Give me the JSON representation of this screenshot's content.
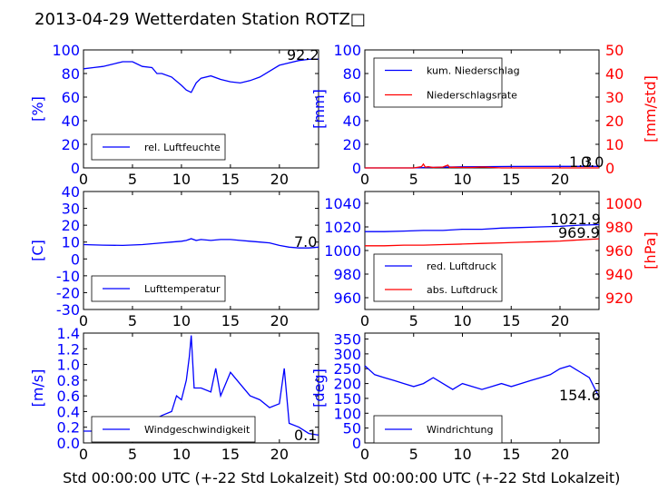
{
  "page": {
    "title": "2013-04-29 Wetterdaten Station ROTZ□"
  },
  "colors": {
    "blue": "#0000ff",
    "red": "#ff0000",
    "black": "#000000"
  },
  "chart_data": [
    {
      "type": "line",
      "ylabel": "[%]",
      "xlim": [
        0,
        24
      ],
      "ylim": [
        0,
        100
      ],
      "xticks": [
        0,
        5,
        10,
        15,
        20
      ],
      "yticks": [
        0,
        20,
        40,
        60,
        80,
        100
      ],
      "legend": "lower-left",
      "annotation": "92.2",
      "series": [
        {
          "name": "rel. Luftfeuchte",
          "color": "#0000ff",
          "x": [
            0,
            1,
            2,
            3,
            4,
            5,
            6,
            7,
            7.5,
            8,
            9,
            10,
            10.5,
            11,
            11.5,
            12,
            13,
            14,
            15,
            16,
            17,
            18,
            19,
            20,
            21,
            22,
            23,
            24
          ],
          "y": [
            84,
            85,
            86,
            88,
            90,
            90,
            86,
            85,
            80,
            80,
            77,
            70,
            66,
            64,
            72,
            76,
            78,
            75,
            73,
            72,
            74,
            77,
            82,
            87,
            89,
            91,
            92,
            92.2
          ]
        }
      ]
    },
    {
      "type": "line",
      "ylabel": "[mm]",
      "ylabel_right": "[mm/std]",
      "xlim": [
        0,
        24
      ],
      "ylim": [
        0,
        100
      ],
      "ylim_right": [
        0,
        50
      ],
      "xticks": [
        0,
        5,
        10,
        15,
        20
      ],
      "yticks": [
        0,
        20,
        40,
        60,
        80,
        100
      ],
      "yticks_right": [
        0,
        10,
        20,
        30,
        40,
        50
      ],
      "legend": "top-left",
      "annotation": "1.3",
      "annotation_2": "0.0",
      "series": [
        {
          "name": "kum. Niederschlag",
          "color": "#0000ff",
          "axis": "left",
          "x": [
            0,
            5,
            6,
            8,
            10,
            12,
            15,
            20,
            24
          ],
          "y": [
            0,
            0,
            0.3,
            0.6,
            0.9,
            1.1,
            1.2,
            1.3,
            1.3
          ]
        },
        {
          "name": "Niederschlagsrate",
          "color": "#ff0000",
          "axis": "right",
          "x": [
            0,
            5,
            5.8,
            6.0,
            6.2,
            6.5,
            7,
            8,
            8.5,
            8.7,
            9,
            10,
            11,
            12,
            12.5,
            13,
            14,
            24
          ],
          "y": [
            0,
            0,
            0.5,
            1.6,
            0.3,
            0.5,
            0.2,
            0.4,
            1.2,
            0.2,
            0.3,
            0.2,
            0.2,
            0.4,
            0.3,
            0.2,
            0,
            0
          ]
        }
      ]
    },
    {
      "type": "line",
      "ylabel": "[C]",
      "xlim": [
        0,
        24
      ],
      "ylim": [
        -30,
        40
      ],
      "xticks": [
        0,
        5,
        10,
        15,
        20
      ],
      "yticks": [
        -30,
        -20,
        -10,
        0,
        10,
        20,
        30,
        40
      ],
      "legend": "lower-left",
      "annotation": "7.0",
      "series": [
        {
          "name": "Lufttemperatur",
          "color": "#0000ff",
          "x": [
            0,
            2,
            4,
            6,
            8,
            9,
            10,
            10.5,
            11,
            11.5,
            12,
            13,
            14,
            15,
            16,
            17,
            18,
            19,
            20,
            21,
            22,
            23,
            24
          ],
          "y": [
            8.5,
            8.2,
            8,
            8.5,
            9.5,
            10,
            10.5,
            11,
            12,
            11,
            11.5,
            11,
            11.5,
            11.5,
            11,
            10.5,
            10,
            9.5,
            8,
            7,
            6.5,
            6.5,
            7
          ]
        }
      ]
    },
    {
      "type": "line",
      "ylabel_right": "[hPa]",
      "xlim": [
        0,
        24
      ],
      "ylim": [
        950,
        1050
      ],
      "ylim_right": [
        910,
        1010
      ],
      "xticks": [
        0,
        5,
        10,
        15,
        20
      ],
      "yticks": [
        960,
        980,
        1000,
        1020,
        1040
      ],
      "yticks_right": [
        920,
        940,
        960,
        980,
        1000
      ],
      "legend": "lower-left",
      "annotation": "1021.9",
      "annotation_2": "969.9",
      "series": [
        {
          "name": "red. Luftdruck",
          "color": "#0000ff",
          "axis": "left",
          "x": [
            0,
            2,
            4,
            6,
            8,
            10,
            12,
            14,
            16,
            18,
            20,
            22,
            24
          ],
          "y": [
            1016,
            1016,
            1016.5,
            1017,
            1017,
            1018,
            1018,
            1019,
            1019.5,
            1020,
            1020.5,
            1021.5,
            1021.9
          ]
        },
        {
          "name": "abs. Luftdruck",
          "color": "#ff0000",
          "axis": "right",
          "x": [
            0,
            2,
            4,
            6,
            8,
            10,
            12,
            14,
            16,
            18,
            20,
            22,
            24
          ],
          "y": [
            964,
            964,
            964.5,
            964.5,
            965,
            965.5,
            966,
            966.5,
            967,
            967.5,
            968,
            969,
            969.9
          ]
        }
      ]
    },
    {
      "type": "line",
      "ylabel": "[m/s]",
      "xlabel": "Std 00:00:00 UTC (+-22 Std Lokalzeit)",
      "xlim": [
        0,
        24
      ],
      "ylim": [
        0,
        1.4
      ],
      "xticks": [
        0,
        5,
        10,
        15,
        20
      ],
      "yticks": [
        0.0,
        0.2,
        0.4,
        0.6,
        0.8,
        1.0,
        1.2,
        1.4
      ],
      "legend": "lower-left",
      "annotation": "0.1",
      "series": [
        {
          "name": "Windgeschwindigkeit",
          "color": "#0000ff",
          "x": [
            0,
            1,
            2,
            3,
            4,
            5,
            6,
            7,
            8,
            9,
            9.5,
            10,
            10.5,
            10.8,
            11,
            11.3,
            12,
            13,
            13.5,
            14,
            15,
            16,
            17,
            18,
            19,
            20,
            20.5,
            21,
            22,
            23,
            24
          ],
          "y": [
            0.15,
            0.15,
            0.2,
            0.18,
            0.2,
            0.25,
            0.3,
            0.28,
            0.35,
            0.4,
            0.6,
            0.55,
            0.8,
            1.1,
            1.37,
            0.7,
            0.7,
            0.65,
            0.95,
            0.6,
            0.9,
            0.75,
            0.6,
            0.55,
            0.45,
            0.5,
            0.95,
            0.25,
            0.2,
            0.12,
            0.1
          ]
        }
      ]
    },
    {
      "type": "line",
      "ylabel": "[deg]",
      "xlabel": "Std 00:00:00 UTC (+-22 Std Lokalzeit)",
      "xlim": [
        0,
        24
      ],
      "ylim": [
        0,
        370
      ],
      "xticks": [
        0,
        5,
        10,
        15,
        20
      ],
      "yticks": [
        0,
        50,
        100,
        150,
        200,
        250,
        300,
        350
      ],
      "legend": "lower-left",
      "annotation": "154.6",
      "series": [
        {
          "name": "Windrichtung",
          "color": "#0000ff",
          "x": [
            0,
            1,
            2,
            3,
            4,
            5,
            6,
            7,
            8,
            9,
            10,
            11,
            12,
            13,
            14,
            15,
            16,
            17,
            18,
            19,
            20,
            21,
            22,
            23,
            24
          ],
          "y": [
            260,
            230,
            220,
            210,
            200,
            190,
            200,
            220,
            200,
            180,
            200,
            190,
            180,
            190,
            200,
            190,
            200,
            210,
            220,
            230,
            250,
            260,
            240,
            220,
            154.6
          ]
        }
      ]
    }
  ]
}
